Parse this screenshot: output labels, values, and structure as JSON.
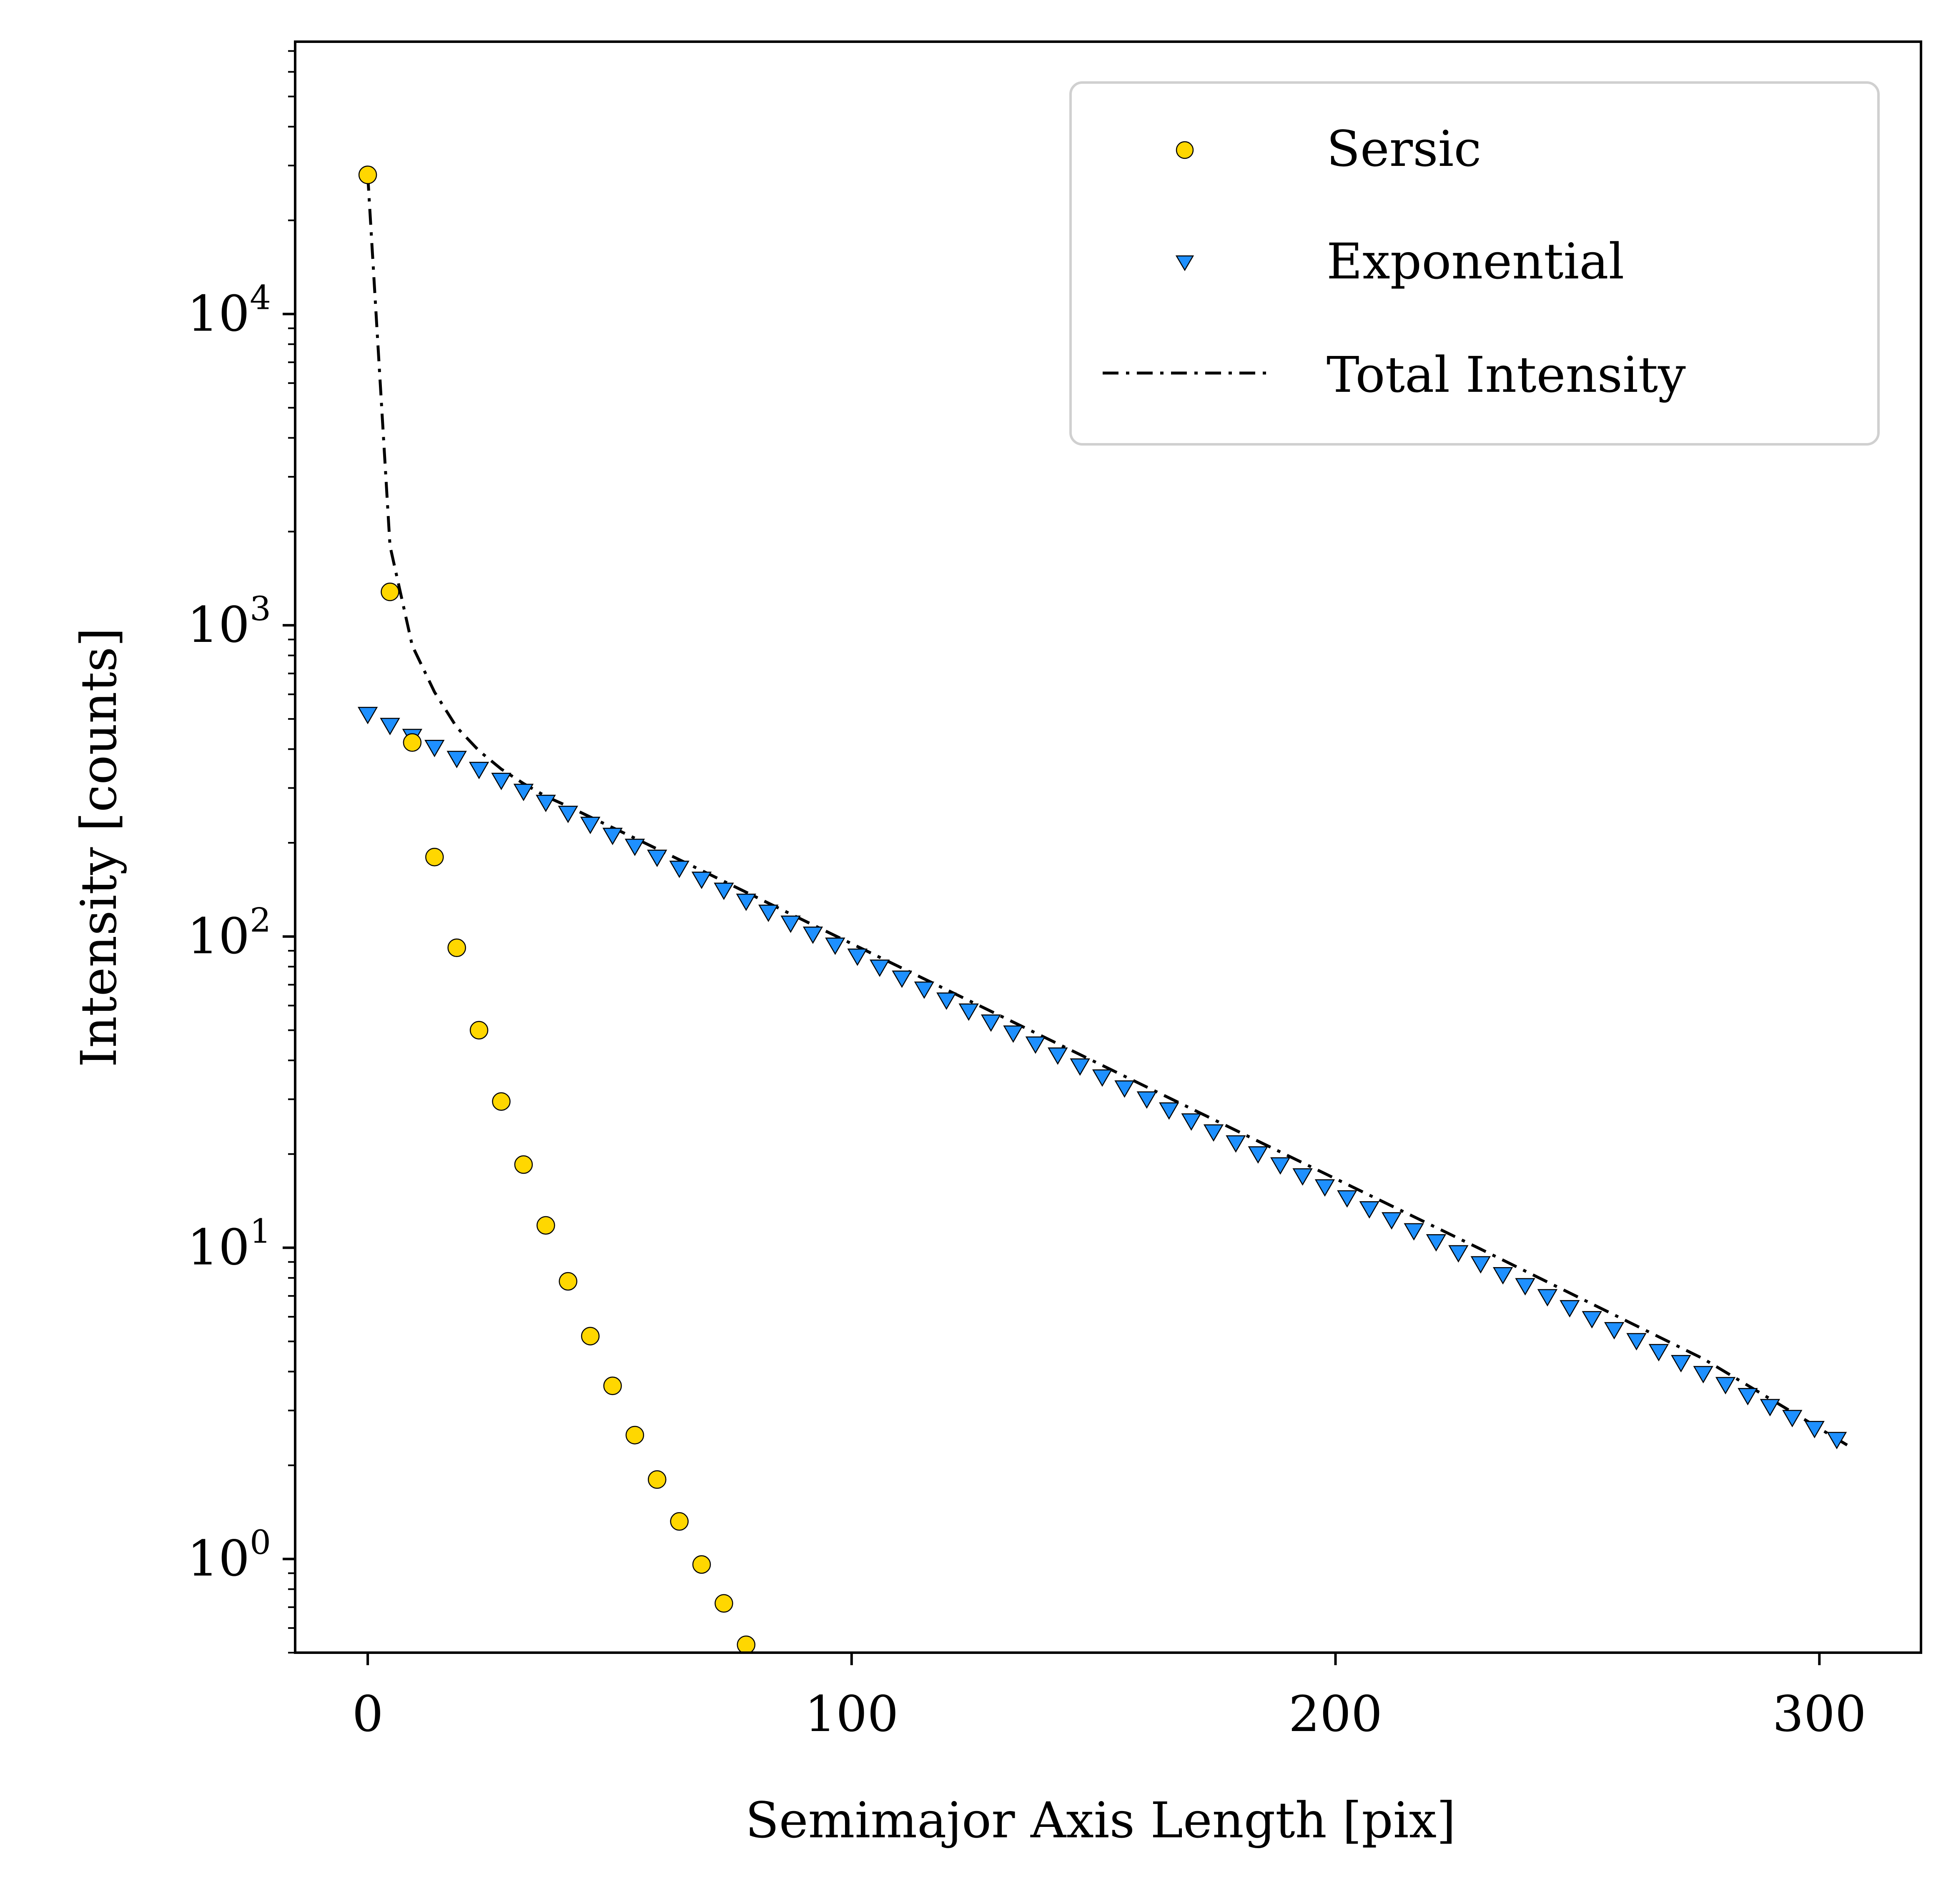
{
  "chart_data": {
    "type": "scatter",
    "xlabel": "Semimajor Axis Length [pix]",
    "ylabel": "Intensity [counts]",
    "xlim": [
      -15,
      321
    ],
    "ylim": [
      0.5,
      75000
    ],
    "yscale": "log",
    "grid": false,
    "legend_position": "top-right",
    "x_ticks": [
      {
        "value": 0,
        "label": "0"
      },
      {
        "value": 100,
        "label": "100"
      },
      {
        "value": 200,
        "label": "200"
      },
      {
        "value": 300,
        "label": "300"
      }
    ],
    "y_ticks": [
      {
        "value": 1,
        "base": "10",
        "exp": "0"
      },
      {
        "value": 10,
        "base": "10",
        "exp": "1"
      },
      {
        "value": 100,
        "base": "10",
        "exp": "2"
      },
      {
        "value": 1000,
        "base": "10",
        "exp": "3"
      },
      {
        "value": 10000,
        "base": "10",
        "exp": "4"
      }
    ],
    "series": [
      {
        "name": "Sersic",
        "kind": "scatter",
        "marker": "circle",
        "color": "#FFD700",
        "edge": "#000000",
        "x": [
          0,
          4.6,
          9.2,
          13.8,
          18.4,
          23.0,
          27.6,
          32.2,
          36.8,
          41.4,
          46.0,
          50.6,
          55.2,
          59.8,
          64.4,
          69.0,
          73.6,
          78.2
        ],
        "y": [
          28000,
          1280,
          420,
          180,
          92,
          50,
          29.5,
          18.5,
          11.8,
          7.8,
          5.2,
          3.6,
          2.5,
          1.8,
          1.32,
          0.96,
          0.72,
          0.53
        ]
      },
      {
        "name": "Exponential",
        "kind": "scatter",
        "marker": "triangle-down",
        "color": "#1E90FF",
        "edge": "#000000",
        "x_start": 0,
        "x_step": 4.6,
        "count": 67,
        "y0": 520,
        "scale_length": 56.6
      },
      {
        "name": "Total Intensity",
        "kind": "line",
        "line_style": "dash-dot",
        "color": "#000000",
        "x": [
          0,
          4.6,
          9.2,
          13.8,
          18.4,
          23.0,
          27.6,
          32.2,
          36.8,
          41.4,
          46.0,
          55.2,
          69.0,
          92.0,
          138.0,
          184.0,
          230.0,
          276.0,
          306.2
        ],
        "y": [
          28000,
          1800,
          860,
          610,
          470,
          395,
          345,
          310,
          282,
          262,
          242,
          207,
          163,
          109,
          49,
          22,
          9.9,
          4.4,
          2.3
        ]
      }
    ]
  }
}
